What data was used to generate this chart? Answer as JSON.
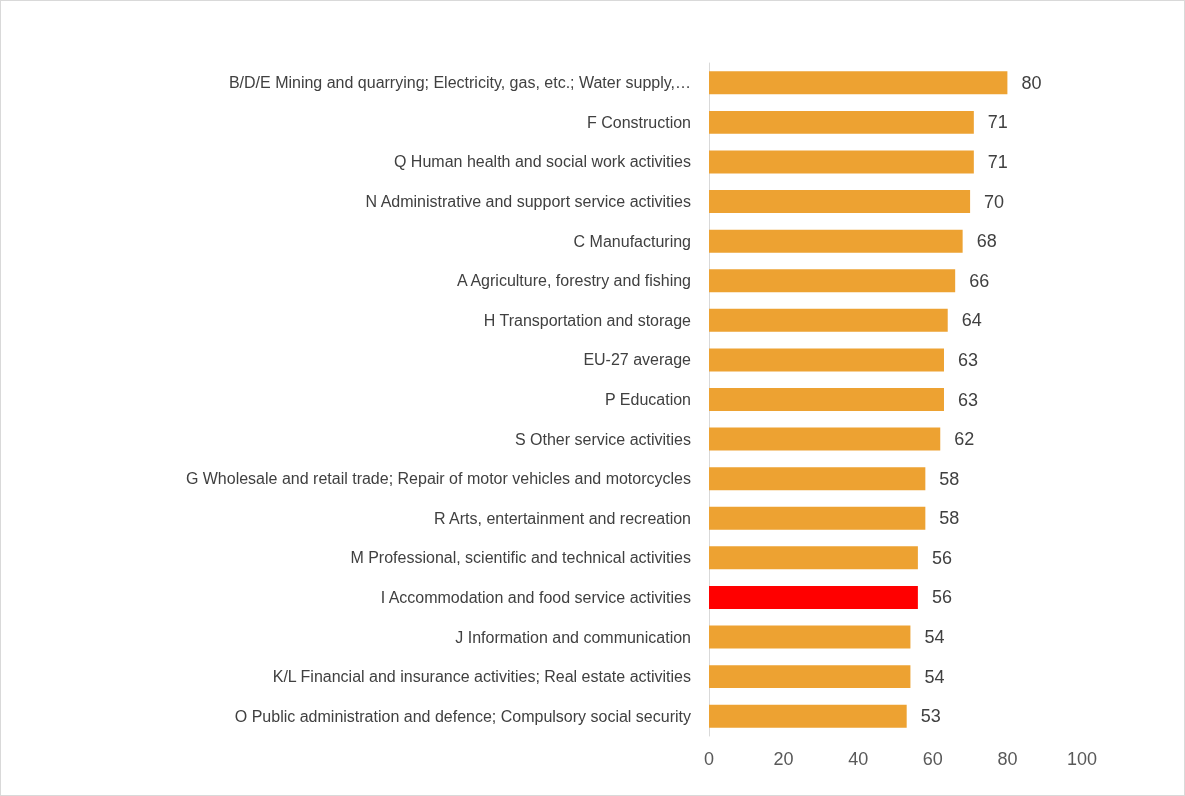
{
  "chart_data": {
    "type": "bar",
    "orientation": "horizontal",
    "categories": [
      "B/D/E Mining and quarrying; Electricity, gas, etc.; Water supply,…",
      "F Construction",
      "Q Human health and social work activities",
      "N Administrative and support service activities",
      "C Manufacturing",
      "A Agriculture, forestry and fishing",
      "H Transportation and storage",
      "EU-27 average",
      "P Education",
      "S Other service activities",
      "G Wholesale and retail trade; Repair of motor vehicles and motorcycles",
      "R Arts, entertainment and recreation",
      "M Professional, scientific and technical activities",
      "I Accommodation and food service activities",
      "J Information and communication",
      "K/L Financial and insurance activities; Real estate activities",
      "O Public administration and defence; Compulsory social security"
    ],
    "values": [
      80,
      71,
      71,
      70,
      68,
      66,
      64,
      63,
      63,
      62,
      58,
      58,
      56,
      56,
      54,
      54,
      53
    ],
    "colors": [
      "#eda232",
      "#eda232",
      "#eda232",
      "#eda232",
      "#eda232",
      "#eda232",
      "#eda232",
      "#eda232",
      "#eda232",
      "#eda232",
      "#eda232",
      "#eda232",
      "#eda232",
      "#ff0000",
      "#eda232",
      "#eda232",
      "#eda232"
    ],
    "xlim": [
      0,
      100
    ],
    "xticks": [
      0,
      20,
      40,
      60,
      80,
      100
    ],
    "grid": false,
    "data_labels": true
  }
}
